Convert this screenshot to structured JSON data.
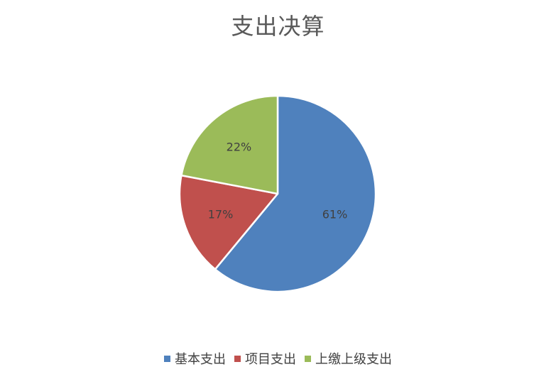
{
  "chart_data": {
    "type": "pie",
    "title": "支出决算",
    "categories": [
      "基本支出",
      "项目支出",
      "上缴上级支出"
    ],
    "values": [
      61,
      17,
      22
    ],
    "labels": [
      "61%",
      "17%",
      "22%"
    ],
    "colors": [
      "#4F81BD",
      "#C0504D",
      "#9BBB59"
    ],
    "legend_position": "bottom"
  }
}
